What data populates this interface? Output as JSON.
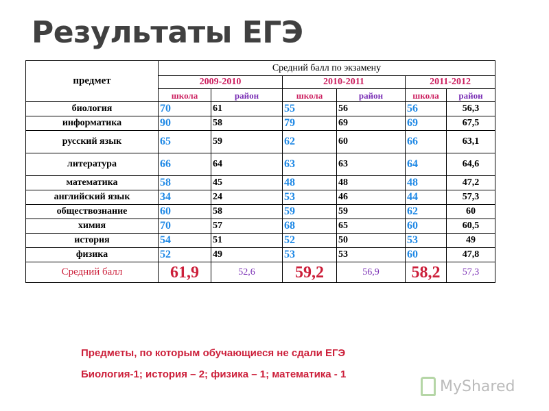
{
  "title": "Результаты ЕГЭ",
  "table": {
    "subject_header": "предмет",
    "avg_header": "Средний балл по экзамену",
    "years": [
      "2009-2010",
      "2010-2011",
      "2011-2012"
    ],
    "school_label": "школа",
    "rayon_label": "район",
    "rows": [
      {
        "subject": "биология",
        "v": [
          "70",
          "61",
          "55",
          "56",
          "56",
          "56,3"
        ]
      },
      {
        "subject": "информатика",
        "v": [
          "90",
          "58",
          "79",
          "69",
          "69",
          "67,5"
        ]
      },
      {
        "subject": "русский язык",
        "v": [
          "65",
          "59",
          "62",
          "60",
          "66",
          "63,1"
        ]
      },
      {
        "subject": "литература",
        "v": [
          "66",
          "64",
          "63",
          "63",
          "64",
          "64,6"
        ]
      },
      {
        "subject": "математика",
        "v": [
          "58",
          "45",
          "48",
          "48",
          "48",
          "47,2"
        ]
      },
      {
        "subject": "английский язык",
        "v": [
          "34",
          "24",
          "53",
          "46",
          "44",
          "57,3"
        ]
      },
      {
        "subject": "обществознание",
        "v": [
          "60",
          "58",
          "59",
          "59",
          "62",
          "60"
        ]
      },
      {
        "subject": "химия",
        "v": [
          "70",
          "57",
          "68",
          "65",
          "60",
          "60,5"
        ]
      },
      {
        "subject": "история",
        "v": [
          "54",
          "51",
          "52",
          "50",
          "53",
          "49"
        ]
      },
      {
        "subject": "физика",
        "v": [
          "52",
          "49",
          "53",
          "53",
          "60",
          "47,8"
        ]
      }
    ],
    "average": {
      "label": "Средний балл",
      "v": [
        "61,9",
        "52,6",
        "59,2",
        "56,9",
        "58,2",
        "57,3"
      ]
    }
  },
  "footer": {
    "line1": "Предметы, по которым обучающиеся не сдали ЕГЭ",
    "line2": "Биология-1; история – 2; физика – 1; математика - 1"
  },
  "watermark": {
    "text": "MyShared",
    "icon": "myshared-logo-icon"
  },
  "colors": {
    "school": "#1e88e5",
    "header": "#cc1f5f",
    "rayon_header": "#7a2fb5",
    "title": "#404040"
  }
}
